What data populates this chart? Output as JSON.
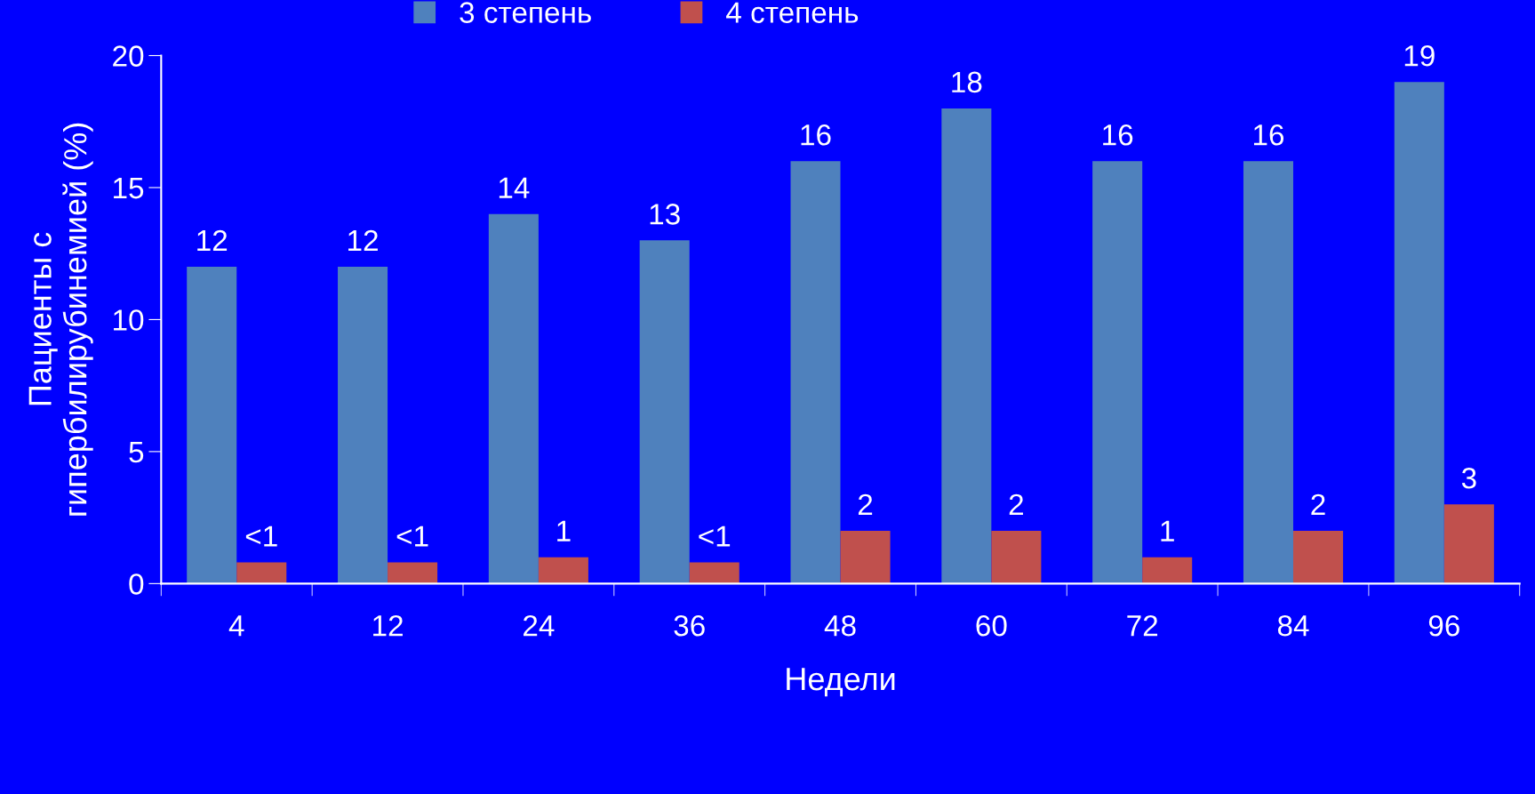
{
  "chart_data": {
    "type": "bar",
    "xlabel": "Недели",
    "ylabel": "Пациенты с\nгипербилирубинемией (%)",
    "categories": [
      "4",
      "12",
      "24",
      "36",
      "48",
      "60",
      "72",
      "84",
      "96"
    ],
    "series": [
      {
        "name": "3 степень",
        "color": "#4f81bd",
        "values": [
          12,
          12,
          14,
          13,
          16,
          18,
          16,
          16,
          19
        ],
        "value_labels": [
          "12",
          "12",
          "14",
          "13",
          "16",
          "18",
          "16",
          "16",
          "19"
        ]
      },
      {
        "name": "4 степень",
        "color": "#c0504d",
        "values": [
          0.8,
          0.8,
          1,
          0.8,
          2,
          2,
          1,
          2,
          3
        ],
        "value_labels": [
          "<1",
          "<1",
          "1",
          "<1",
          "2",
          "2",
          "1",
          "2",
          "3"
        ]
      }
    ],
    "ylim": [
      0,
      20
    ],
    "yticks": [
      0,
      5,
      10,
      15,
      20
    ],
    "legend": "top",
    "grid": false
  }
}
